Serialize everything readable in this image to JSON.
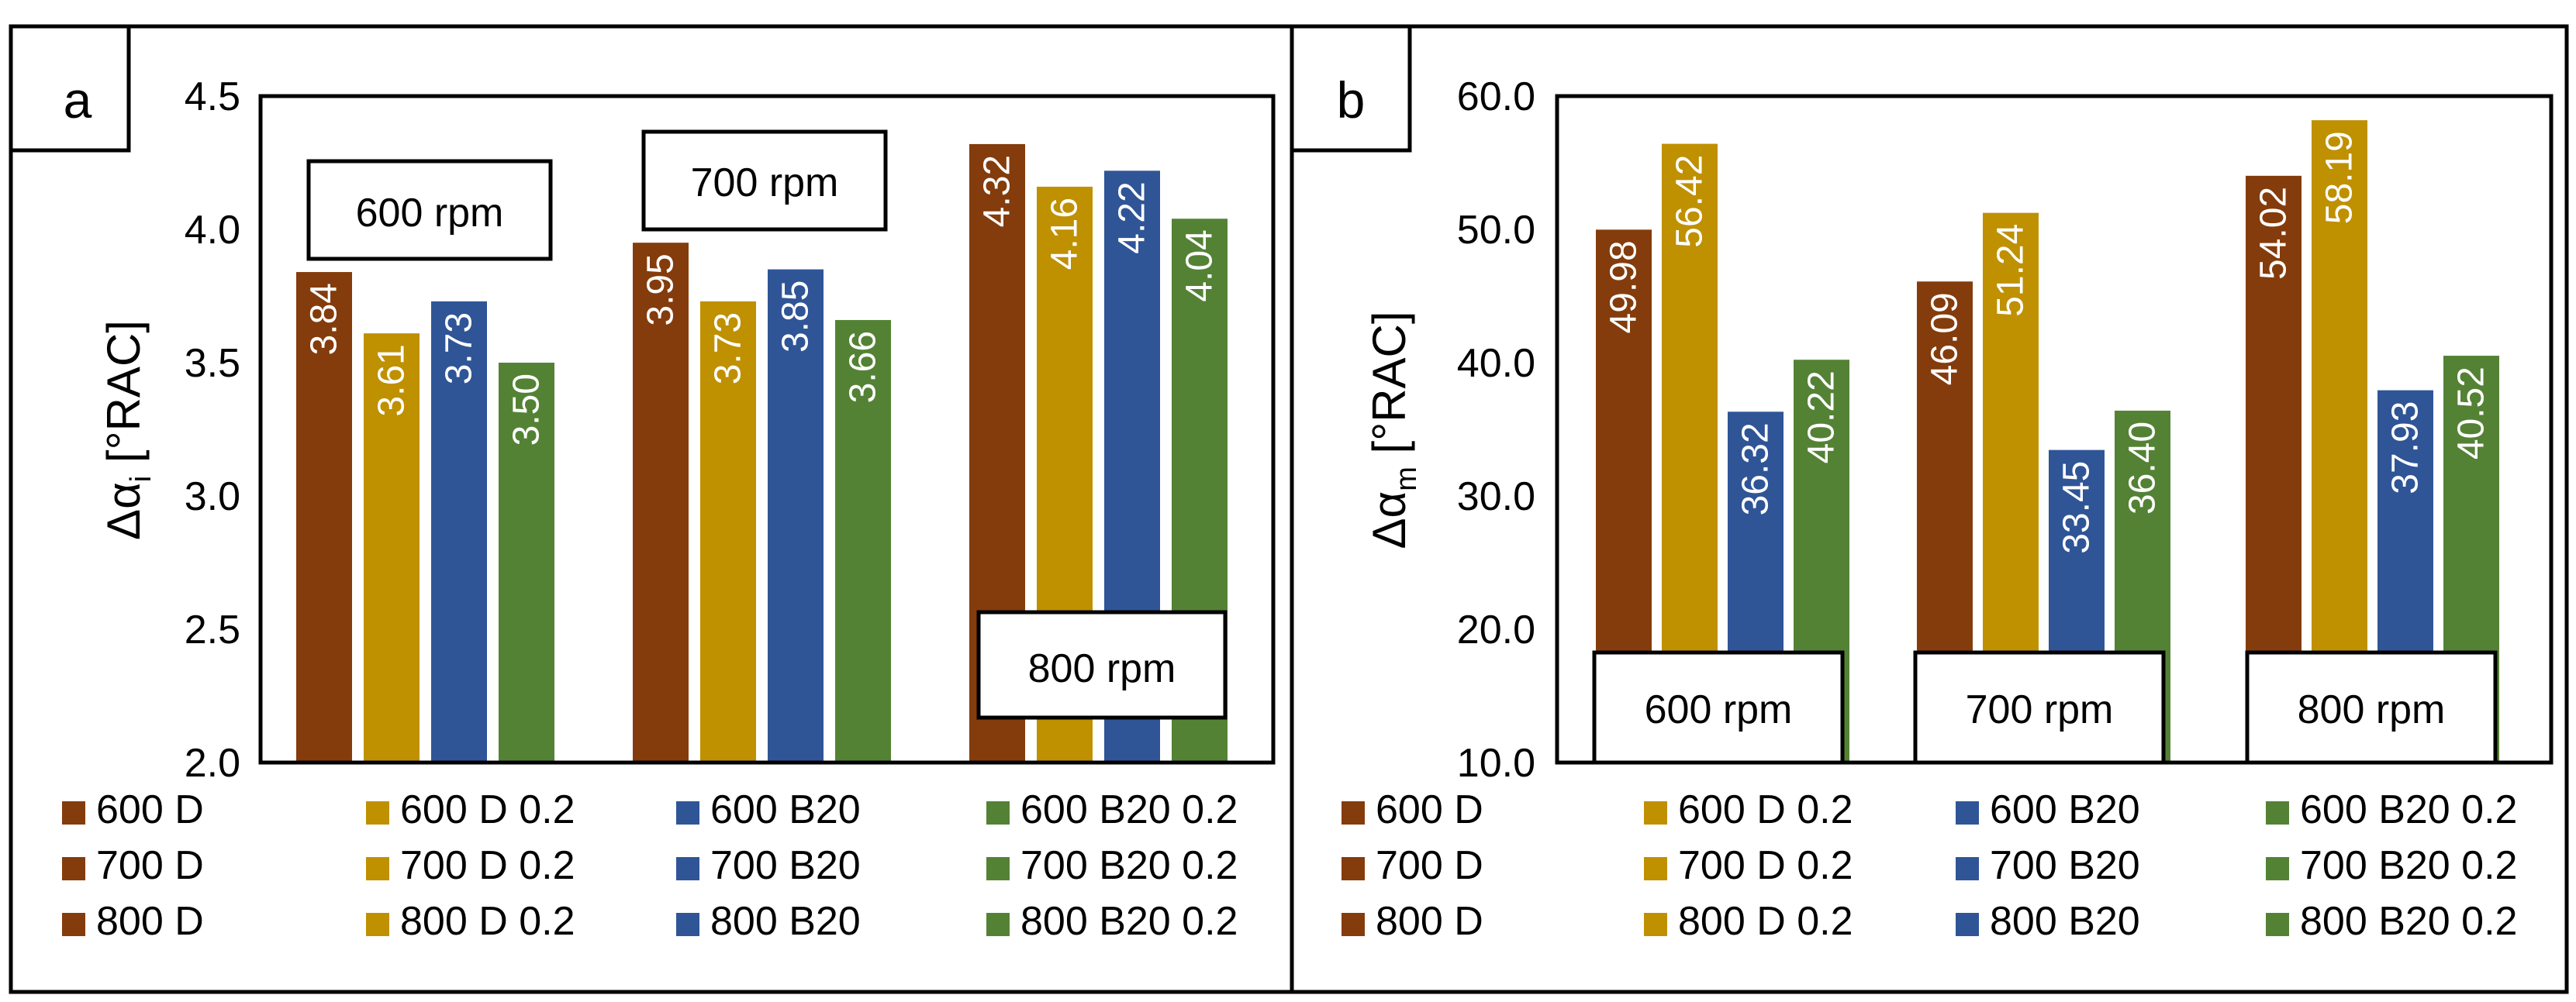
{
  "colors": {
    "D": "#843C0C",
    "D02": "#BF9000",
    "B20": "#2F5597",
    "B2002": "#548235",
    "frame": "#000000",
    "label": "#ffffff"
  },
  "chart_data": [
    {
      "id": "a",
      "type": "bar",
      "panel_label": "a",
      "ylabel_main": "Δα",
      "ylabel_sub": "i",
      "ylabel_unit": " [°RAC]",
      "ylim": [
        2.0,
        4.5
      ],
      "yticks": [
        "2.0",
        "2.5",
        "3.0",
        "3.5",
        "4.0",
        "4.5"
      ],
      "ytick_values": [
        2.0,
        2.5,
        3.0,
        3.5,
        4.0,
        4.5
      ],
      "categories": [
        "600 rpm",
        "700 rpm",
        "800 rpm"
      ],
      "series": [
        {
          "name": "D",
          "color_key": "D",
          "values": [
            3.84,
            3.95,
            4.32
          ],
          "labels": [
            "3.84",
            "3.95",
            "4.32"
          ]
        },
        {
          "name": "D 0.2",
          "color_key": "D02",
          "values": [
            3.61,
            3.73,
            4.16
          ],
          "labels": [
            "3.61",
            "3.73",
            "4.16"
          ]
        },
        {
          "name": "B20",
          "color_key": "B20",
          "values": [
            3.73,
            3.85,
            4.22
          ],
          "labels": [
            "3.73",
            "3.85",
            "4.22"
          ]
        },
        {
          "name": "B20 0.2",
          "color_key": "B2002",
          "values": [
            3.5,
            3.66,
            4.04
          ],
          "labels": [
            "3.50",
            "3.66",
            "4.04"
          ]
        }
      ],
      "legend": [
        [
          "600 D",
          "600 D 0.2",
          "600 B20",
          "600 B20 0.2"
        ],
        [
          "700 D",
          "700 D 0.2",
          "700 B20",
          "700 B20 0.2"
        ],
        [
          "800 D",
          "800 D 0.2",
          "800 B20",
          "800 B20 0.2"
        ]
      ]
    },
    {
      "id": "b",
      "type": "bar",
      "panel_label": "b",
      "ylabel_main": "Δα",
      "ylabel_sub": "m",
      "ylabel_unit": " [°RAC]",
      "ylim": [
        10.0,
        60.0
      ],
      "yticks": [
        "10.0",
        "20.0",
        "30.0",
        "40.0",
        "50.0",
        "60.0"
      ],
      "ytick_values": [
        10.0,
        20.0,
        30.0,
        40.0,
        50.0,
        60.0
      ],
      "categories": [
        "600 rpm",
        "700 rpm",
        "800 rpm"
      ],
      "series": [
        {
          "name": "D",
          "color_key": "D",
          "values": [
            49.98,
            46.09,
            54.02
          ],
          "labels": [
            "49.98",
            "46.09",
            "54.02"
          ]
        },
        {
          "name": "D 0.2",
          "color_key": "D02",
          "values": [
            56.42,
            51.24,
            58.19
          ],
          "labels": [
            "56.42",
            "51.24",
            "58.19"
          ]
        },
        {
          "name": "B20",
          "color_key": "B20",
          "values": [
            36.32,
            33.45,
            37.93
          ],
          "labels": [
            "36.32",
            "33.45",
            "37.93"
          ]
        },
        {
          "name": "B20 0.2",
          "color_key": "B2002",
          "values": [
            40.22,
            36.4,
            40.52
          ],
          "labels": [
            "40.22",
            "36.40",
            "40.52"
          ]
        }
      ],
      "legend": [
        [
          "600 D",
          "600 D 0.2",
          "600 B20",
          "600 B20 0.2"
        ],
        [
          "700 D",
          "700 D 0.2",
          "700 B20",
          "700 B20 0.2"
        ],
        [
          "800 D",
          "800 D 0.2",
          "800 B20",
          "800 B20 0.2"
        ]
      ]
    }
  ]
}
